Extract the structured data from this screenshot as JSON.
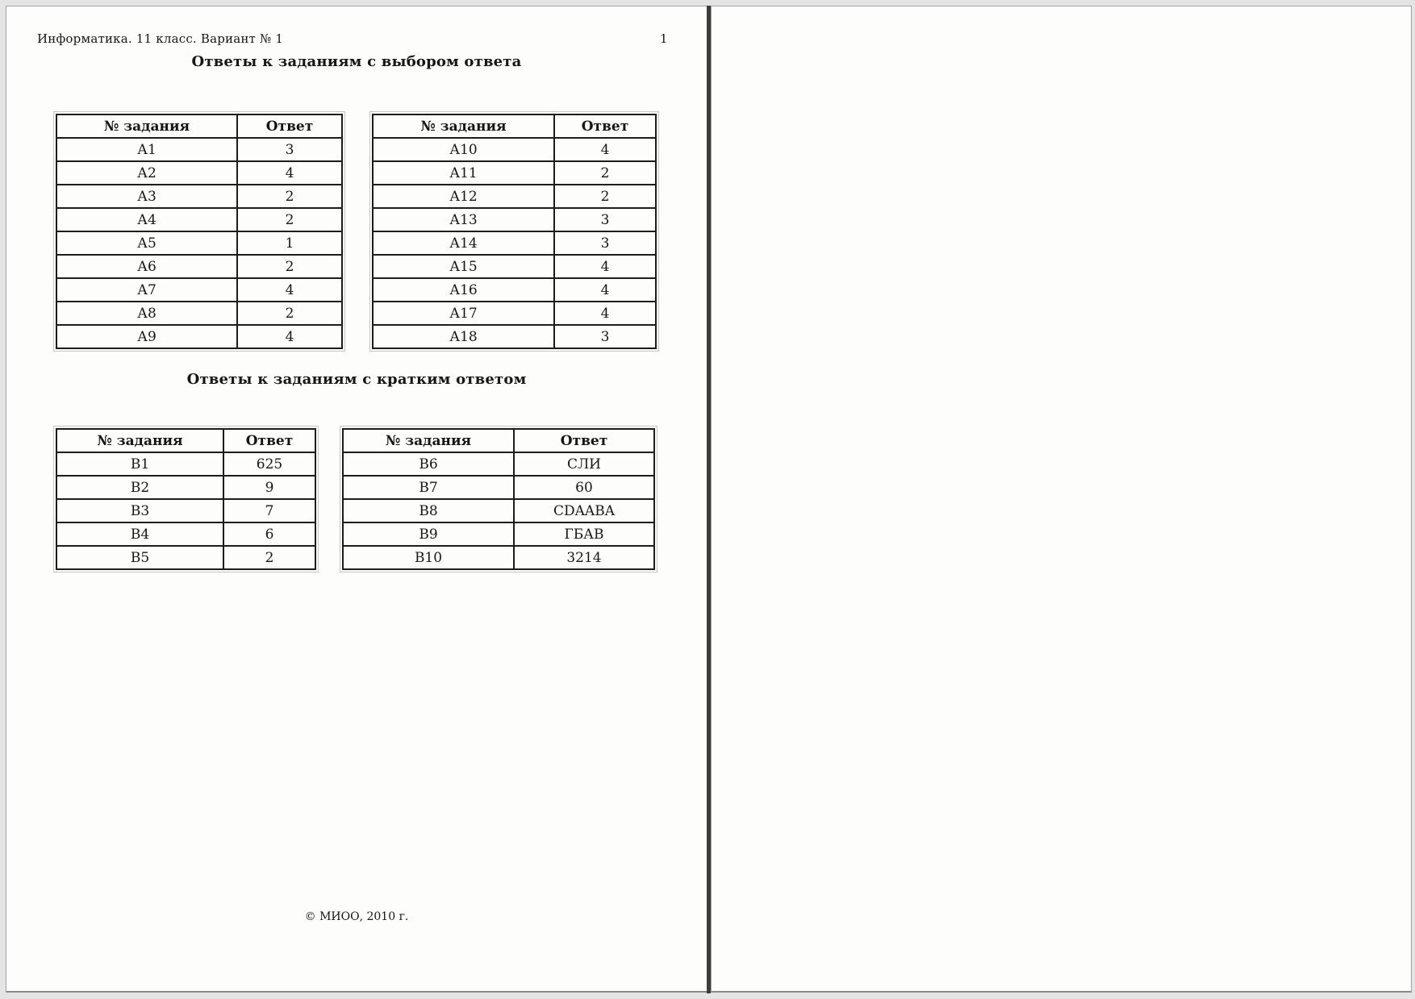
{
  "page": {
    "header": "Информатика. 11 класс. Вариант № 1",
    "page_number": "1",
    "footer": "© МИОО, 2010 г."
  },
  "section_choice": {
    "title": "Ответы к заданиям с выбором ответа",
    "columns": {
      "task": "№ задания",
      "answer": "Ответ"
    },
    "table_left": {
      "rows": [
        [
          "А1",
          "3"
        ],
        [
          "А2",
          "4"
        ],
        [
          "А3",
          "2"
        ],
        [
          "А4",
          "2"
        ],
        [
          "А5",
          "1"
        ],
        [
          "А6",
          "2"
        ],
        [
          "А7",
          "4"
        ],
        [
          "А8",
          "2"
        ],
        [
          "А9",
          "4"
        ]
      ]
    },
    "table_right": {
      "rows": [
        [
          "А10",
          "4"
        ],
        [
          "А11",
          "2"
        ],
        [
          "А12",
          "2"
        ],
        [
          "А13",
          "3"
        ],
        [
          "А14",
          "3"
        ],
        [
          "А15",
          "4"
        ],
        [
          "А16",
          "4"
        ],
        [
          "А17",
          "4"
        ],
        [
          "А18",
          "3"
        ]
      ]
    }
  },
  "section_short": {
    "title": "Ответы к заданиям с кратким ответом",
    "columns": {
      "task": "№ задания",
      "answer": "Ответ"
    },
    "table_left": {
      "rows": [
        [
          "В1",
          "625"
        ],
        [
          "В2",
          "9"
        ],
        [
          "В3",
          "7"
        ],
        [
          "В4",
          "6"
        ],
        [
          "В5",
          "2"
        ]
      ]
    },
    "table_right": {
      "rows": [
        [
          "В6",
          "СЛИ"
        ],
        [
          "В7",
          "60"
        ],
        [
          "В8",
          "CDAABA"
        ],
        [
          "В9",
          "ГБАВ"
        ],
        [
          "В10",
          "3214"
        ]
      ]
    }
  }
}
